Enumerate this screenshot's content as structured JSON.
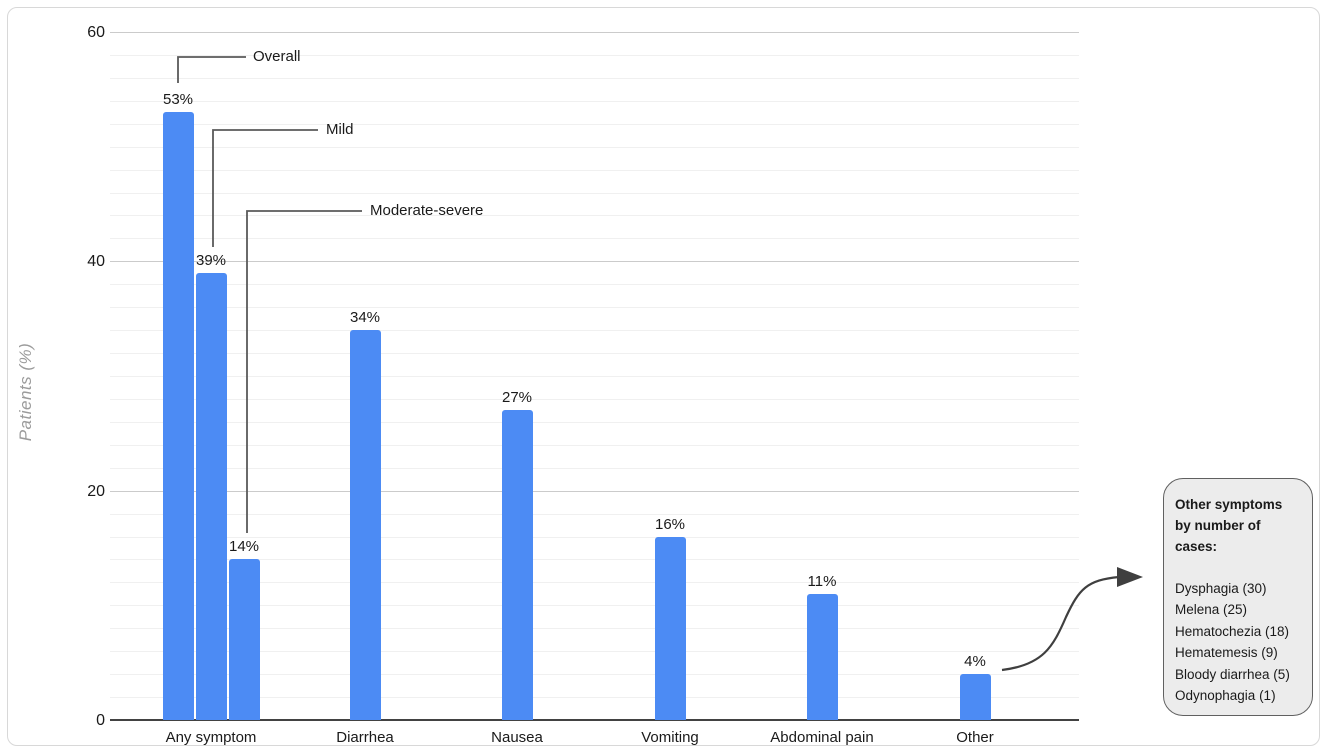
{
  "colors": {
    "bar_color": "#4C8BF4",
    "axis_color": "#424242",
    "grid_minor_color": "#f0f0f0",
    "grid_major_color": "#cbcbcb",
    "leader_line_color": "#5a5a5a",
    "arrow_color": "#3f3f3f",
    "callout_bg": "#ececec",
    "callout_border": "#606060"
  },
  "chart_data": {
    "type": "bar",
    "title": "",
    "xlabel": "",
    "ylabel": "Patients (%)",
    "ylim": [
      0,
      60
    ],
    "yticks": [
      "0",
      "20",
      "40",
      "60"
    ],
    "ytick_values": [
      0,
      20,
      40,
      60
    ],
    "grid": true,
    "grid_minor_step": 2,
    "grid_major_step": 20,
    "legend_position": "none",
    "categories": [
      "Any symptom",
      "Diarrhea",
      "Nausea",
      "Vomiting",
      "Abdominal pain",
      "Other"
    ],
    "bars": [
      {
        "category": "Any symptom",
        "series": "Overall",
        "value": 53,
        "label": "53%"
      },
      {
        "category": "Any symptom",
        "series": "Mild",
        "value": 39,
        "label": "39%"
      },
      {
        "category": "Any symptom",
        "series": "Moderate-severe",
        "value": 14,
        "label": "14%"
      },
      {
        "category": "Diarrhea",
        "series": "Overall",
        "value": 34,
        "label": "34%"
      },
      {
        "category": "Nausea",
        "series": "Overall",
        "value": 27,
        "label": "27%"
      },
      {
        "category": "Vomiting",
        "series": "Overall",
        "value": 16,
        "label": "16%"
      },
      {
        "category": "Abdominal pain",
        "series": "Overall",
        "value": 11,
        "label": "11%"
      },
      {
        "category": "Other",
        "series": "Overall",
        "value": 4,
        "label": "4%"
      }
    ],
    "annotations": [
      {
        "label": "Overall",
        "points_to": "Any symptom 53% bar"
      },
      {
        "label": "Mild",
        "points_to": "Any symptom 39% bar"
      },
      {
        "label": "Moderate-severe",
        "points_to": "Any symptom 14% bar"
      }
    ]
  },
  "callout": {
    "title": "Other symptoms by number of cases:",
    "items": [
      "Dysphagia (30)",
      "Melena (25)",
      "Hematochezia (18)",
      "Hematemesis (9)",
      "Bloody diarrhea (5)",
      "Odynophagia (1)"
    ],
    "arrow_from": "Other"
  }
}
